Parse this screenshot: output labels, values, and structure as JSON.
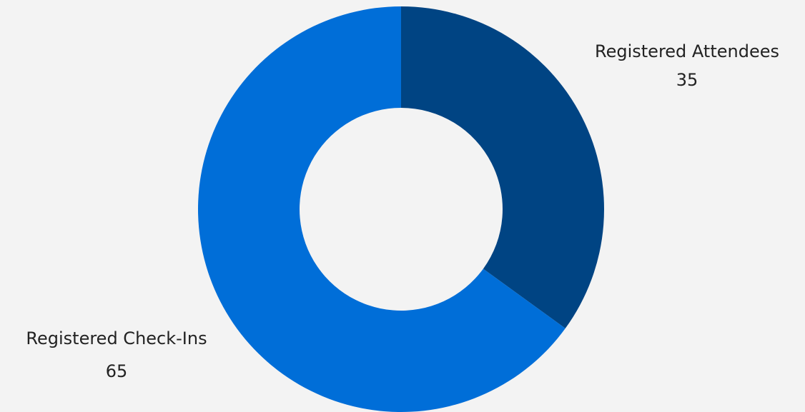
{
  "chart_data": {
    "type": "donut",
    "categories": [
      "Registered Attendees",
      "Registered Check-Ins"
    ],
    "values": [
      35,
      65
    ],
    "colors": [
      "#004483",
      "#006ed8"
    ]
  }
}
